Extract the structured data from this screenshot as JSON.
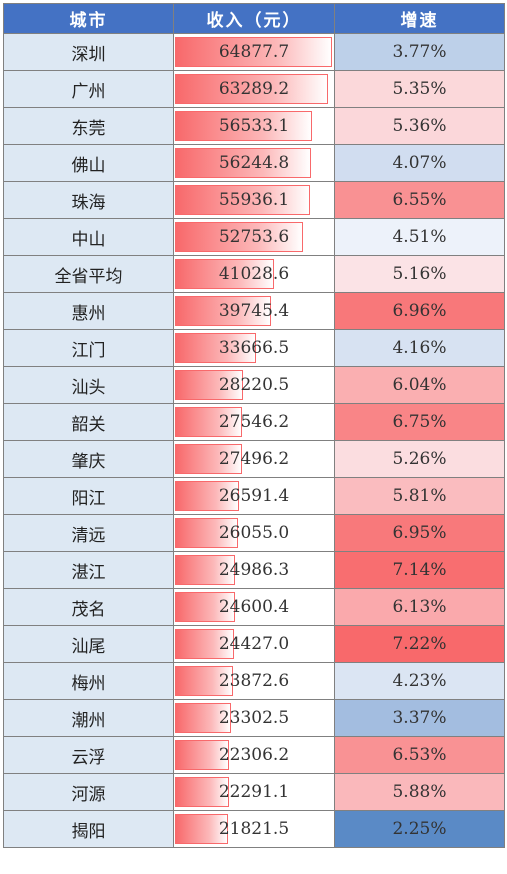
{
  "header": {
    "city": "城市",
    "income": "收入（元）",
    "growth": "增速"
  },
  "colors": {
    "header_bg": "#4472c4",
    "bar": "#f8696b",
    "scale_low": "#5a8ac6",
    "scale_mid": "#fcfcff",
    "scale_high": "#f8696b"
  },
  "chart_data": {
    "type": "table",
    "columns": [
      "城市",
      "收入（元）",
      "增速"
    ],
    "rows": [
      {
        "city": "深圳",
        "income": "64877.7",
        "growth": "3.77%"
      },
      {
        "city": "广州",
        "income": "63289.2",
        "growth": "5.35%"
      },
      {
        "city": "东莞",
        "income": "56533.1",
        "growth": "5.36%"
      },
      {
        "city": "佛山",
        "income": "56244.8",
        "growth": "4.07%"
      },
      {
        "city": "珠海",
        "income": "55936.1",
        "growth": "6.55%"
      },
      {
        "city": "中山",
        "income": "52753.6",
        "growth": "4.51%"
      },
      {
        "city": "全省平均",
        "income": "41028.6",
        "growth": "5.16%"
      },
      {
        "city": "惠州",
        "income": "39745.4",
        "growth": "6.96%"
      },
      {
        "city": "江门",
        "income": "33666.5",
        "growth": "4.16%"
      },
      {
        "city": "汕头",
        "income": "28220.5",
        "growth": "6.04%"
      },
      {
        "city": "韶关",
        "income": "27546.2",
        "growth": "6.75%"
      },
      {
        "city": "肇庆",
        "income": "27496.2",
        "growth": "5.26%"
      },
      {
        "city": "阳江",
        "income": "26591.4",
        "growth": "5.81%"
      },
      {
        "city": "清远",
        "income": "26055.0",
        "growth": "6.95%"
      },
      {
        "city": "湛江",
        "income": "24986.3",
        "growth": "7.14%"
      },
      {
        "city": "茂名",
        "income": "24600.4",
        "growth": "6.13%"
      },
      {
        "city": "汕尾",
        "income": "24427.0",
        "growth": "7.22%"
      },
      {
        "city": "梅州",
        "income": "23872.6",
        "growth": "4.23%"
      },
      {
        "city": "潮州",
        "income": "23302.5",
        "growth": "3.37%"
      },
      {
        "city": "云浮",
        "income": "22306.2",
        "growth": "6.53%"
      },
      {
        "city": "河源",
        "income": "22291.1",
        "growth": "5.88%"
      },
      {
        "city": "揭阳",
        "income": "21821.5",
        "growth": "2.25%"
      }
    ]
  }
}
